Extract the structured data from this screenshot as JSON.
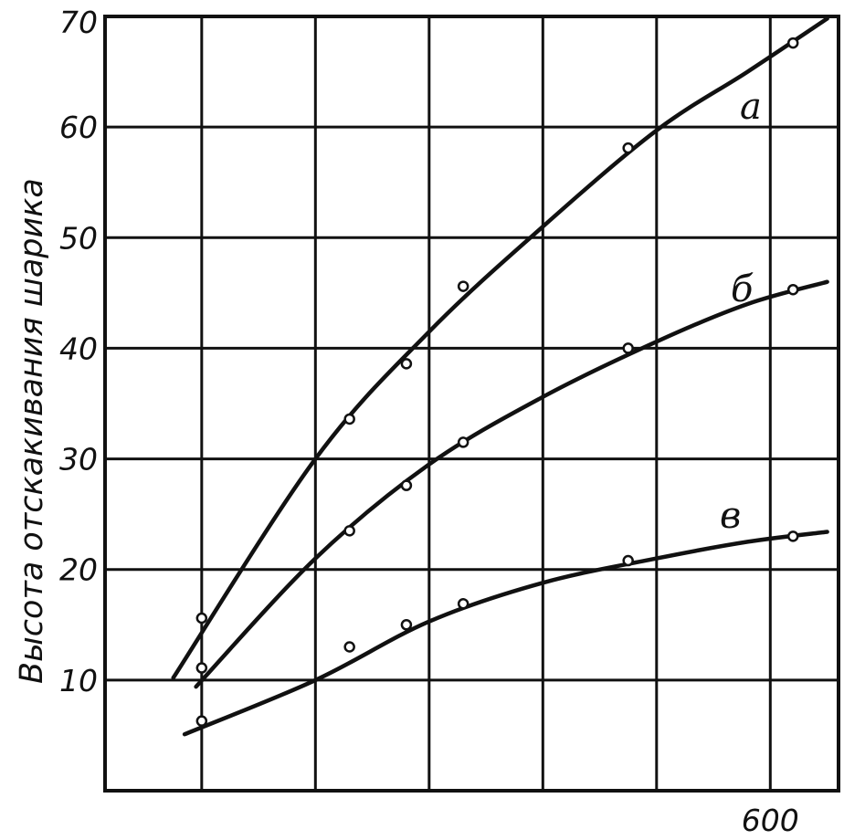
{
  "chart_data": {
    "type": "line",
    "title": "",
    "ylabel": "Высота отскакивания шарика",
    "xlabel": "",
    "y_ticks": [
      "10",
      "20",
      "30",
      "40",
      "50",
      "60",
      "70"
    ],
    "x_ticks": [
      "600"
    ],
    "xlim": [
      15,
      660
    ],
    "ylim": [
      0,
      70
    ],
    "grid": true,
    "x_gridlines": [
      100,
      200,
      300,
      400,
      500,
      600
    ],
    "series": [
      {
        "name": "а",
        "points": [
          [
            100,
            15.6
          ],
          [
            230,
            33.6
          ],
          [
            280,
            38.6
          ],
          [
            330,
            45.6
          ],
          [
            475,
            58.1
          ],
          [
            620,
            67.6
          ]
        ],
        "curve": [
          [
            75,
            10.2
          ],
          [
            200,
            30.0
          ],
          [
            300,
            41.5
          ],
          [
            400,
            51.0
          ],
          [
            500,
            59.7
          ],
          [
            580,
            65.0
          ],
          [
            650,
            69.8
          ]
        ]
      },
      {
        "name": "б",
        "points": [
          [
            100,
            11.1
          ],
          [
            230,
            23.5
          ],
          [
            280,
            27.6
          ],
          [
            330,
            31.5
          ],
          [
            475,
            40.0
          ],
          [
            620,
            45.3
          ]
        ],
        "curve": [
          [
            95,
            9.4
          ],
          [
            200,
            21.0
          ],
          [
            300,
            29.5
          ],
          [
            400,
            35.6
          ],
          [
            500,
            40.6
          ],
          [
            580,
            44.0
          ],
          [
            650,
            46.0
          ]
        ]
      },
      {
        "name": "в",
        "points": [
          [
            100,
            6.3
          ],
          [
            230,
            13.0
          ],
          [
            280,
            15.0
          ],
          [
            330,
            16.9
          ],
          [
            475,
            20.8
          ],
          [
            620,
            23.0
          ]
        ],
        "curve": [
          [
            85,
            5.1
          ],
          [
            200,
            10.0
          ],
          [
            300,
            15.3
          ],
          [
            400,
            18.8
          ],
          [
            500,
            21.0
          ],
          [
            580,
            22.5
          ],
          [
            650,
            23.4
          ]
        ]
      }
    ]
  }
}
